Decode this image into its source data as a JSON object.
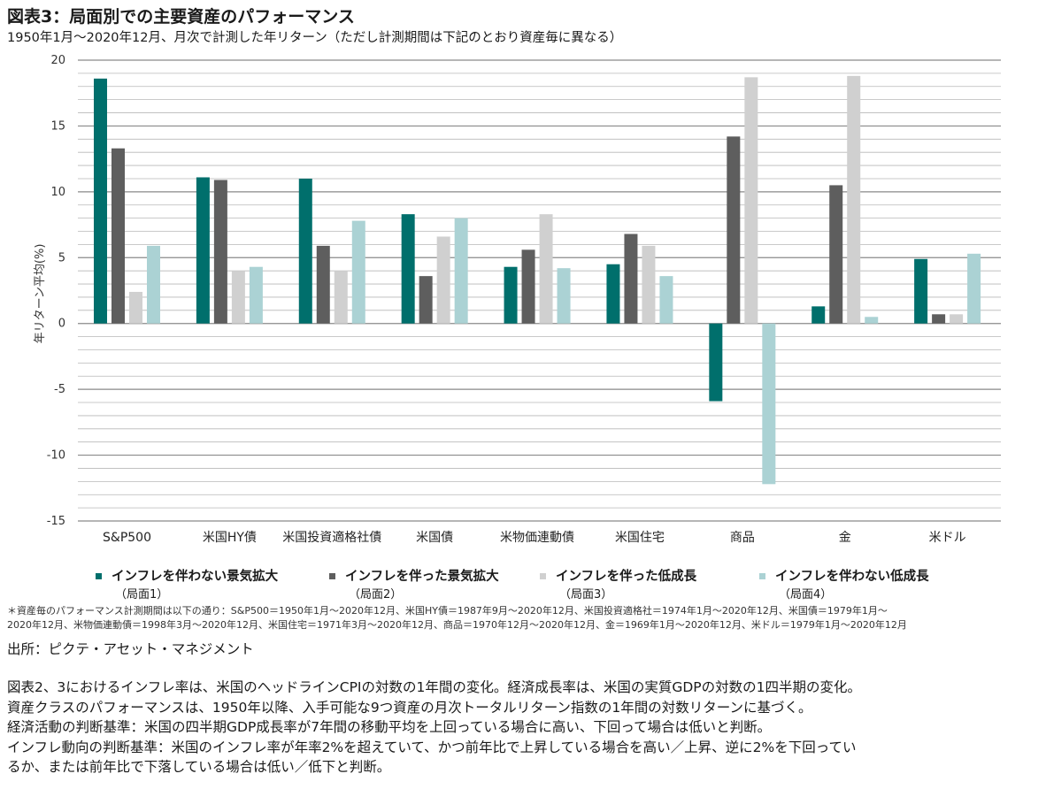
{
  "header": {
    "title": "図表3：局面別での主要資産のパフォーマンス",
    "subtitle": "1950年1月～2020年12月、月次で計測した年リターン（ただし計測期間は下記のとおり資産毎に異なる）"
  },
  "chart_data": {
    "type": "bar",
    "ylabel": "年リターン平均(%)",
    "ylim": [
      -15,
      20
    ],
    "yticks": [
      20,
      15,
      10,
      5,
      0,
      -5,
      -10,
      -15
    ],
    "grid": true,
    "legend_position": "bottom",
    "categories": [
      "S&P500",
      "米国HY債",
      "米国投資適格社債",
      "米国債",
      "米物価連動債",
      "米国住宅",
      "商品",
      "金",
      "米ドル"
    ],
    "series": [
      {
        "name": "インフレを伴わない景気拡大",
        "note": "（局面1）",
        "color": "#006f6c",
        "values": [
          18.6,
          11.1,
          11.0,
          8.3,
          4.3,
          4.5,
          -5.9,
          1.3,
          4.9
        ]
      },
      {
        "name": "インフレを伴った景気拡大",
        "note": "（局面2）",
        "color": "#5e5e5e",
        "values": [
          13.3,
          10.9,
          5.9,
          3.6,
          5.6,
          6.8,
          14.2,
          10.5,
          0.7
        ]
      },
      {
        "name": "インフレを伴った低成長",
        "note": "（局面3）",
        "color": "#d0d0d0",
        "values": [
          2.4,
          4.0,
          4.0,
          6.6,
          8.3,
          5.9,
          18.7,
          18.8,
          0.7
        ]
      },
      {
        "name": "インフレを伴わない低成長",
        "note": "（局面4）",
        "color": "#abd2d4",
        "values": [
          5.9,
          4.3,
          7.8,
          8.0,
          4.2,
          3.6,
          -12.2,
          0.5,
          5.3
        ]
      }
    ]
  },
  "footnote": {
    "line1": "＊資産毎のパフォーマンス計測期間は以下の通り：S&P500＝1950年1月～2020年12月、米国HY債＝1987年9月～2020年12月、米国投資適格社＝1974年1月～2020年12月、米国債＝1979年1月～",
    "line2": "2020年12月、米物価連動債＝1998年3月～2020年12月、米国住宅＝1971年3月～2020年12月、商品＝1970年12月～2020年12月、金＝1969年1月～2020年12月、米ドル＝1979年1月～2020年12月"
  },
  "source": "出所：ピクテ・アセット・マネジメント",
  "description": [
    "図表2、3におけるインフレ率は、米国のヘッドラインCPIの対数の1年間の変化。経済成長率は、米国の実質GDPの対数の1四半期の変化。",
    "資産クラスのパフォーマンスは、1950年以降、入手可能な9つ資産の月次トータルリターン指数の1年間の対数リターンに基づく。",
    "経済活動の判断基準：米国の四半期GDP成長率が7年間の移動平均を上回っている場合に高い、下回って場合は低いと判断。",
    "インフレ動向の判断基準：米国のインフレ率が年率2%を超えていて、かつ前年比で上昇している場合を高い／上昇、逆に2%を下回ってい",
    "るか、または前年比で下落している場合は低い／低下と判断。"
  ]
}
